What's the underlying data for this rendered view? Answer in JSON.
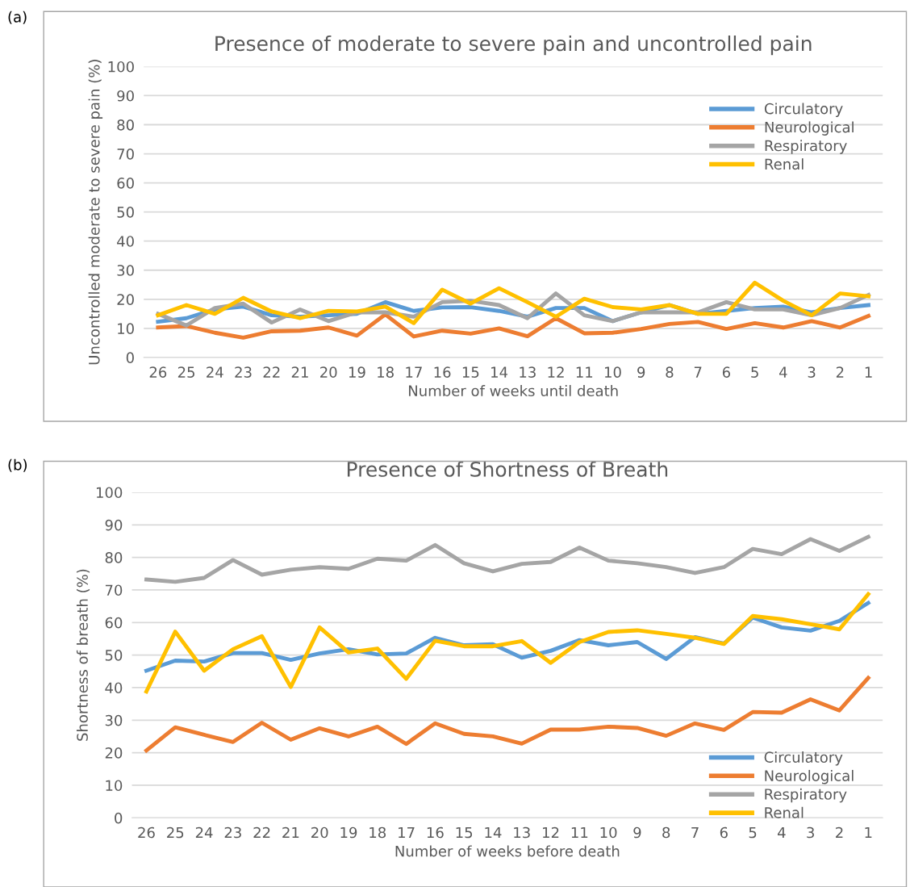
{
  "chart_data": [
    {
      "type": "line",
      "title": "Presence of moderate to severe pain and uncontrolled pain",
      "xlabel": "Number of weeks until death",
      "ylabel": "Uncontrolled moderate to severe pain (%)",
      "annotations": [
        "(a)"
      ],
      "categories": [
        "26",
        "25",
        "24",
        "23",
        "22",
        "21",
        "20",
        "19",
        "18",
        "17",
        "16",
        "15",
        "14",
        "13",
        "12",
        "11",
        "10",
        "9",
        "8",
        "7",
        "6",
        "5",
        "4",
        "3",
        "2",
        "1"
      ],
      "series": [
        {
          "name": "Circulatory",
          "color": "#5b9bd5",
          "values": [
            12.3,
            13.5,
            16.5,
            17.5,
            14.5,
            14,
            14.5,
            15,
            19,
            16,
            17.2,
            17.3,
            16,
            14,
            17,
            17,
            12.5,
            15.5,
            18,
            15,
            16,
            17,
            17.5,
            15.5,
            17,
            18
          ]
        },
        {
          "name": "Neurological",
          "color": "#ed7d31",
          "values": [
            10.3,
            10.8,
            8.5,
            6.8,
            9,
            9.2,
            10.3,
            7.5,
            14.8,
            7.2,
            9.2,
            8.2,
            10,
            7.3,
            13.5,
            8.3,
            8.5,
            9.8,
            11.5,
            12.2,
            9.8,
            11.8,
            10.3,
            12.5,
            10.3,
            14.3
          ]
        },
        {
          "name": "Respiratory",
          "color": "#a5a5a5",
          "values": [
            15,
            11,
            17,
            18.5,
            12,
            16.5,
            12.5,
            15.5,
            15.5,
            14,
            19,
            19.5,
            18,
            13.5,
            22,
            14.5,
            12.5,
            15.5,
            15.5,
            15.5,
            19,
            16.5,
            16.5,
            14.5,
            17,
            21.5
          ]
        },
        {
          "name": "Renal",
          "color": "#ffc000",
          "values": [
            14.5,
            18,
            15,
            20.5,
            15.8,
            13.5,
            16,
            15.8,
            17.5,
            11.8,
            23.3,
            18.5,
            23.8,
            19,
            14,
            20.2,
            17.3,
            16.5,
            18,
            15,
            15,
            25.7,
            19.5,
            14.5,
            22,
            21
          ]
        }
      ],
      "ylim": [
        0,
        100
      ],
      "yticks": [
        0,
        10,
        20,
        30,
        40,
        50,
        60,
        70,
        80,
        90,
        100
      ],
      "grid": "y",
      "legend": "top right",
      "marker": "none",
      "line_style": "solid"
    },
    {
      "type": "line",
      "title": "Presence of Shortness of Breath",
      "xlabel": "Number of weeks before death",
      "ylabel": "Shortness of breath (%)",
      "annotations": [
        "(b)"
      ],
      "categories": [
        "26",
        "25",
        "24",
        "23",
        "22",
        "21",
        "20",
        "19",
        "18",
        "17",
        "16",
        "15",
        "14",
        "13",
        "12",
        "11",
        "10",
        "9",
        "8",
        "7",
        "6",
        "5",
        "4",
        "3",
        "2",
        "1"
      ],
      "series": [
        {
          "name": "Circulatory",
          "color": "#5b9bd5",
          "values": [
            45.2,
            48.3,
            48,
            50.6,
            50.6,
            48.5,
            50.5,
            51.8,
            50.2,
            50.5,
            55.3,
            53,
            53.3,
            49.2,
            51.3,
            54.6,
            53,
            54,
            48.8,
            55.5,
            53.5,
            61.5,
            58.5,
            57.5,
            60.5,
            66
          ]
        },
        {
          "name": "Neurological",
          "color": "#ed7d31",
          "values": [
            20.7,
            27.8,
            25.5,
            23.3,
            29.2,
            24,
            27.5,
            25,
            28,
            22.7,
            29,
            25.8,
            25,
            22.8,
            27.1,
            27.1,
            28,
            27.6,
            25.2,
            29,
            27,
            32.5,
            32.3,
            36.4,
            33,
            43
          ]
        },
        {
          "name": "Respiratory",
          "color": "#a5a5a5",
          "values": [
            73.2,
            72.5,
            73.7,
            79.2,
            74.7,
            76.2,
            77,
            76.5,
            79.6,
            79,
            83.8,
            78.2,
            75.7,
            78,
            78.6,
            83,
            79,
            78.2,
            77,
            75.2,
            77,
            82.6,
            81,
            85.6,
            82,
            86.3
          ]
        },
        {
          "name": "Renal",
          "color": "#ffc000",
          "values": [
            38.8,
            57.2,
            45.2,
            51.8,
            55.8,
            40.2,
            58.5,
            50.8,
            52,
            42.7,
            54.4,
            52.7,
            52.7,
            54.3,
            47.6,
            54,
            57.1,
            57.6,
            56.5,
            55.3,
            53.4,
            62,
            61,
            59.5,
            57.9,
            68.7
          ]
        }
      ],
      "ylim": [
        0,
        100
      ],
      "yticks": [
        0,
        10,
        20,
        30,
        40,
        50,
        60,
        70,
        80,
        90,
        100
      ],
      "grid": "y",
      "legend": "bottom right",
      "marker": "none",
      "line_style": "solid"
    }
  ]
}
